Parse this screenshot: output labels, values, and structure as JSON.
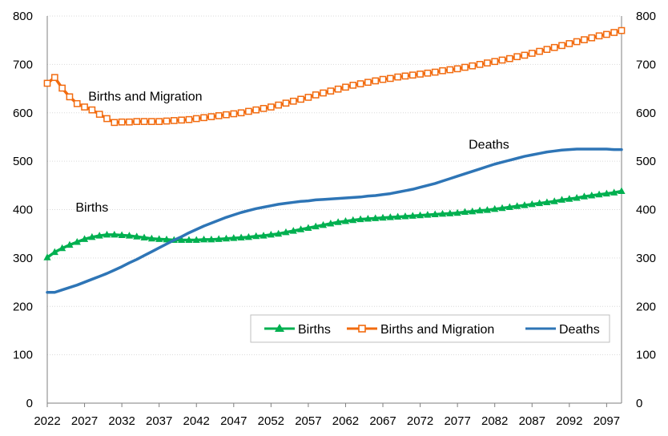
{
  "chart_data": {
    "type": "line",
    "x_start": 2022,
    "x_end": 2099,
    "x_tick_labels": [
      "2022",
      "2027",
      "2032",
      "2037",
      "2042",
      "2047",
      "2052",
      "2057",
      "2062",
      "2067",
      "2072",
      "2077",
      "2082",
      "2087",
      "2092",
      "2097"
    ],
    "y_tick_labels": [
      "0",
      "100",
      "200",
      "300",
      "400",
      "500",
      "600",
      "700",
      "800"
    ],
    "ylim": [
      0,
      800
    ],
    "grid": "horizontal dotted",
    "legend_position": "bottom-right inside plot",
    "series": [
      {
        "name": "Births",
        "color": "#00b050",
        "marker": "triangle",
        "points": [
          [
            2022,
            301
          ],
          [
            2023,
            312
          ],
          [
            2024,
            320
          ],
          [
            2025,
            327
          ],
          [
            2026,
            333
          ],
          [
            2027,
            339
          ],
          [
            2028,
            343
          ],
          [
            2029,
            346
          ],
          [
            2030,
            348
          ],
          [
            2031,
            348
          ],
          [
            2032,
            347
          ],
          [
            2033,
            346
          ],
          [
            2034,
            344
          ],
          [
            2035,
            342
          ],
          [
            2036,
            340
          ],
          [
            2037,
            339
          ],
          [
            2038,
            338
          ],
          [
            2039,
            337
          ],
          [
            2040,
            337
          ],
          [
            2041,
            337
          ],
          [
            2042,
            337
          ],
          [
            2043,
            338
          ],
          [
            2044,
            338
          ],
          [
            2045,
            339
          ],
          [
            2046,
            340
          ],
          [
            2047,
            341
          ],
          [
            2048,
            342
          ],
          [
            2049,
            343
          ],
          [
            2050,
            345
          ],
          [
            2051,
            346
          ],
          [
            2052,
            348
          ],
          [
            2053,
            350
          ],
          [
            2054,
            353
          ],
          [
            2055,
            356
          ],
          [
            2056,
            359
          ],
          [
            2057,
            362
          ],
          [
            2058,
            365
          ],
          [
            2059,
            368
          ],
          [
            2060,
            371
          ],
          [
            2061,
            374
          ],
          [
            2062,
            376
          ],
          [
            2063,
            378
          ],
          [
            2064,
            380
          ],
          [
            2065,
            381
          ],
          [
            2066,
            382
          ],
          [
            2067,
            383
          ],
          [
            2068,
            384
          ],
          [
            2069,
            385
          ],
          [
            2070,
            386
          ],
          [
            2071,
            387
          ],
          [
            2072,
            388
          ],
          [
            2073,
            389
          ],
          [
            2074,
            390
          ],
          [
            2075,
            391
          ],
          [
            2076,
            392
          ],
          [
            2077,
            393
          ],
          [
            2078,
            395
          ],
          [
            2079,
            396
          ],
          [
            2080,
            398
          ],
          [
            2081,
            399
          ],
          [
            2082,
            401
          ],
          [
            2083,
            403
          ],
          [
            2084,
            405
          ],
          [
            2085,
            407
          ],
          [
            2086,
            409
          ],
          [
            2087,
            411
          ],
          [
            2088,
            413
          ],
          [
            2089,
            415
          ],
          [
            2090,
            417
          ],
          [
            2091,
            420
          ],
          [
            2092,
            422
          ],
          [
            2093,
            424
          ],
          [
            2094,
            427
          ],
          [
            2095,
            429
          ],
          [
            2096,
            431
          ],
          [
            2097,
            433
          ],
          [
            2098,
            435
          ],
          [
            2099,
            438
          ]
        ]
      },
      {
        "name": "Births and Migration",
        "color": "#f26b0f",
        "marker": "square",
        "points": [
          [
            2022,
            661
          ],
          [
            2023,
            673
          ],
          [
            2024,
            651
          ],
          [
            2025,
            633
          ],
          [
            2026,
            619
          ],
          [
            2027,
            612
          ],
          [
            2028,
            606
          ],
          [
            2029,
            597
          ],
          [
            2030,
            588
          ],
          [
            2031,
            580
          ],
          [
            2032,
            581
          ],
          [
            2033,
            581
          ],
          [
            2034,
            582
          ],
          [
            2035,
            582
          ],
          [
            2036,
            582
          ],
          [
            2037,
            582
          ],
          [
            2038,
            583
          ],
          [
            2039,
            584
          ],
          [
            2040,
            585
          ],
          [
            2041,
            586
          ],
          [
            2042,
            588
          ],
          [
            2043,
            590
          ],
          [
            2044,
            592
          ],
          [
            2045,
            594
          ],
          [
            2046,
            596
          ],
          [
            2047,
            598
          ],
          [
            2048,
            600
          ],
          [
            2049,
            603
          ],
          [
            2050,
            606
          ],
          [
            2051,
            609
          ],
          [
            2052,
            612
          ],
          [
            2053,
            616
          ],
          [
            2054,
            620
          ],
          [
            2055,
            624
          ],
          [
            2056,
            628
          ],
          [
            2057,
            632
          ],
          [
            2058,
            637
          ],
          [
            2059,
            641
          ],
          [
            2060,
            645
          ],
          [
            2061,
            649
          ],
          [
            2062,
            653
          ],
          [
            2063,
            657
          ],
          [
            2064,
            660
          ],
          [
            2065,
            663
          ],
          [
            2066,
            666
          ],
          [
            2067,
            669
          ],
          [
            2068,
            671
          ],
          [
            2069,
            674
          ],
          [
            2070,
            676
          ],
          [
            2071,
            678
          ],
          [
            2072,
            680
          ],
          [
            2073,
            682
          ],
          [
            2074,
            684
          ],
          [
            2075,
            687
          ],
          [
            2076,
            689
          ],
          [
            2077,
            691
          ],
          [
            2078,
            694
          ],
          [
            2079,
            697
          ],
          [
            2080,
            700
          ],
          [
            2081,
            703
          ],
          [
            2082,
            706
          ],
          [
            2083,
            709
          ],
          [
            2084,
            712
          ],
          [
            2085,
            716
          ],
          [
            2086,
            719
          ],
          [
            2087,
            723
          ],
          [
            2088,
            727
          ],
          [
            2089,
            731
          ],
          [
            2090,
            735
          ],
          [
            2091,
            739
          ],
          [
            2092,
            743
          ],
          [
            2093,
            747
          ],
          [
            2094,
            751
          ],
          [
            2095,
            755
          ],
          [
            2096,
            759
          ],
          [
            2097,
            762
          ],
          [
            2098,
            766
          ],
          [
            2099,
            770
          ]
        ]
      },
      {
        "name": "Deaths",
        "color": "#2e75b6",
        "marker": "none",
        "points": [
          [
            2022,
            229
          ],
          [
            2023,
            229
          ],
          [
            2024,
            234
          ],
          [
            2025,
            239
          ],
          [
            2026,
            244
          ],
          [
            2027,
            250
          ],
          [
            2028,
            256
          ],
          [
            2029,
            262
          ],
          [
            2030,
            268
          ],
          [
            2031,
            275
          ],
          [
            2032,
            282
          ],
          [
            2033,
            290
          ],
          [
            2034,
            297
          ],
          [
            2035,
            305
          ],
          [
            2036,
            313
          ],
          [
            2037,
            321
          ],
          [
            2038,
            329
          ],
          [
            2039,
            337
          ],
          [
            2040,
            344
          ],
          [
            2041,
            352
          ],
          [
            2042,
            359
          ],
          [
            2043,
            366
          ],
          [
            2044,
            372
          ],
          [
            2045,
            378
          ],
          [
            2046,
            384
          ],
          [
            2047,
            389
          ],
          [
            2048,
            394
          ],
          [
            2049,
            398
          ],
          [
            2050,
            402
          ],
          [
            2051,
            405
          ],
          [
            2052,
            408
          ],
          [
            2053,
            411
          ],
          [
            2054,
            413
          ],
          [
            2055,
            415
          ],
          [
            2056,
            417
          ],
          [
            2057,
            418
          ],
          [
            2058,
            420
          ],
          [
            2059,
            421
          ],
          [
            2060,
            422
          ],
          [
            2061,
            423
          ],
          [
            2062,
            424
          ],
          [
            2063,
            425
          ],
          [
            2064,
            426
          ],
          [
            2065,
            428
          ],
          [
            2066,
            429
          ],
          [
            2067,
            431
          ],
          [
            2068,
            433
          ],
          [
            2069,
            436
          ],
          [
            2070,
            439
          ],
          [
            2071,
            442
          ],
          [
            2072,
            446
          ],
          [
            2073,
            450
          ],
          [
            2074,
            454
          ],
          [
            2075,
            459
          ],
          [
            2076,
            464
          ],
          [
            2077,
            469
          ],
          [
            2078,
            474
          ],
          [
            2079,
            479
          ],
          [
            2080,
            484
          ],
          [
            2081,
            489
          ],
          [
            2082,
            494
          ],
          [
            2083,
            498
          ],
          [
            2084,
            502
          ],
          [
            2085,
            506
          ],
          [
            2086,
            510
          ],
          [
            2087,
            513
          ],
          [
            2088,
            516
          ],
          [
            2089,
            519
          ],
          [
            2090,
            521
          ],
          [
            2091,
            523
          ],
          [
            2092,
            524
          ],
          [
            2093,
            525
          ],
          [
            2094,
            525
          ],
          [
            2095,
            525
          ],
          [
            2096,
            525
          ],
          [
            2097,
            525
          ],
          [
            2098,
            524
          ],
          [
            2099,
            524
          ]
        ]
      }
    ],
    "annotations": [
      {
        "text": "Births and Migration",
        "x": 2027.5,
        "y": 625
      },
      {
        "text": "Births",
        "x": 2025.8,
        "y": 396
      },
      {
        "text": "Deaths",
        "x": 2078.5,
        "y": 526
      }
    ]
  }
}
